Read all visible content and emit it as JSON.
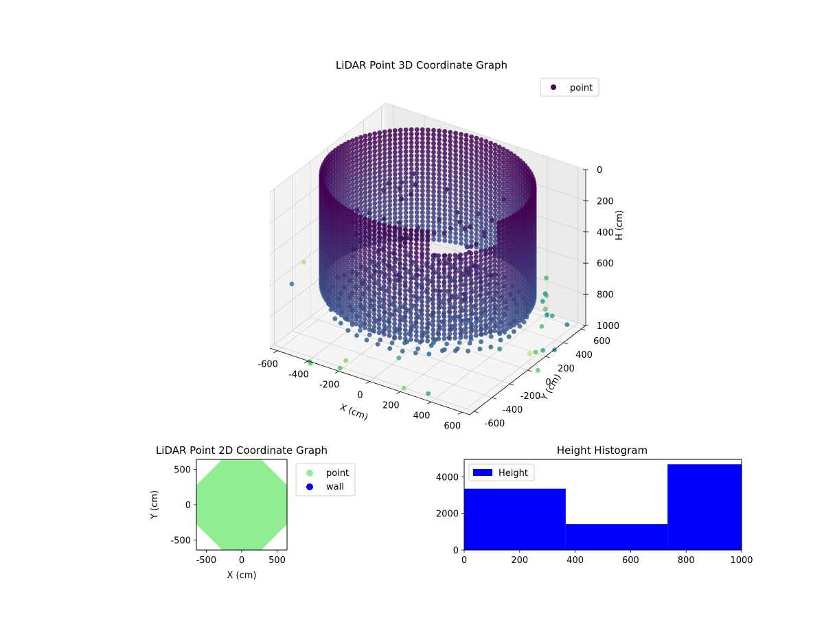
{
  "figure": {
    "background": "#ffffff"
  },
  "chart_data": [
    {
      "id": "scatter3d",
      "type": "scatter",
      "projection": "3d",
      "title": "LiDAR Point 3D Coordinate Graph",
      "xlabel": "X (cm)",
      "ylabel": "Y (cm)",
      "zlabel": "H (cm)",
      "xlim": [
        -650,
        650
      ],
      "ylim": [
        -650,
        650
      ],
      "zlim": [
        0,
        1000
      ],
      "z_inverted": true,
      "x_ticks": [
        "-600",
        "-400",
        "-200",
        "0",
        "200",
        "400",
        "600"
      ],
      "y_ticks": [
        "-600",
        "-400",
        "-200",
        "0",
        "200",
        "400",
        "600"
      ],
      "z_ticks": [
        "0",
        "200",
        "400",
        "600",
        "800",
        "1000"
      ],
      "grid": true,
      "legend": {
        "position": "top-right",
        "entries": [
          {
            "name": "point",
            "color": "#440154"
          }
        ]
      },
      "colormap": "viridis",
      "structure": {
        "wall_radius": 600,
        "wall_height_range": [
          0,
          700
        ],
        "floor_height": 780
      }
    },
    {
      "id": "scatter2d",
      "type": "scatter",
      "title": "LiDAR Point 2D Coordinate Graph",
      "xlabel": "X (cm)",
      "ylabel": "Y (cm)",
      "xlim": [
        -640,
        640
      ],
      "ylim": [
        -640,
        640
      ],
      "x_ticks": [
        -500,
        0,
        500
      ],
      "y_ticks": [
        -500,
        0,
        500
      ],
      "legend": {
        "position": "outside-right",
        "entries": [
          {
            "name": "point",
            "color": "#90ee90"
          },
          {
            "name": "wall",
            "color": "#0000ff"
          }
        ]
      },
      "point_region": {
        "shape": "octagon",
        "radius": 620,
        "color": "#90ee90"
      }
    },
    {
      "id": "histogram",
      "type": "bar",
      "title": "Height Histogram",
      "xlabel": "",
      "ylabel": "",
      "xlim": [
        0,
        1000
      ],
      "ylim": [
        0,
        4950
      ],
      "x_ticks": [
        0,
        200,
        400,
        600,
        800,
        1000
      ],
      "y_ticks": [
        0,
        2000,
        4000
      ],
      "bins": [
        {
          "start": 0,
          "end": 366,
          "value": 3350
        },
        {
          "start": 366,
          "end": 733,
          "value": 1420
        },
        {
          "start": 733,
          "end": 1000,
          "value": 4680
        }
      ],
      "color": "#0000ff",
      "legend": {
        "position": "top-left",
        "entries": [
          {
            "name": "Height",
            "color": "#0000ff"
          }
        ]
      }
    }
  ]
}
